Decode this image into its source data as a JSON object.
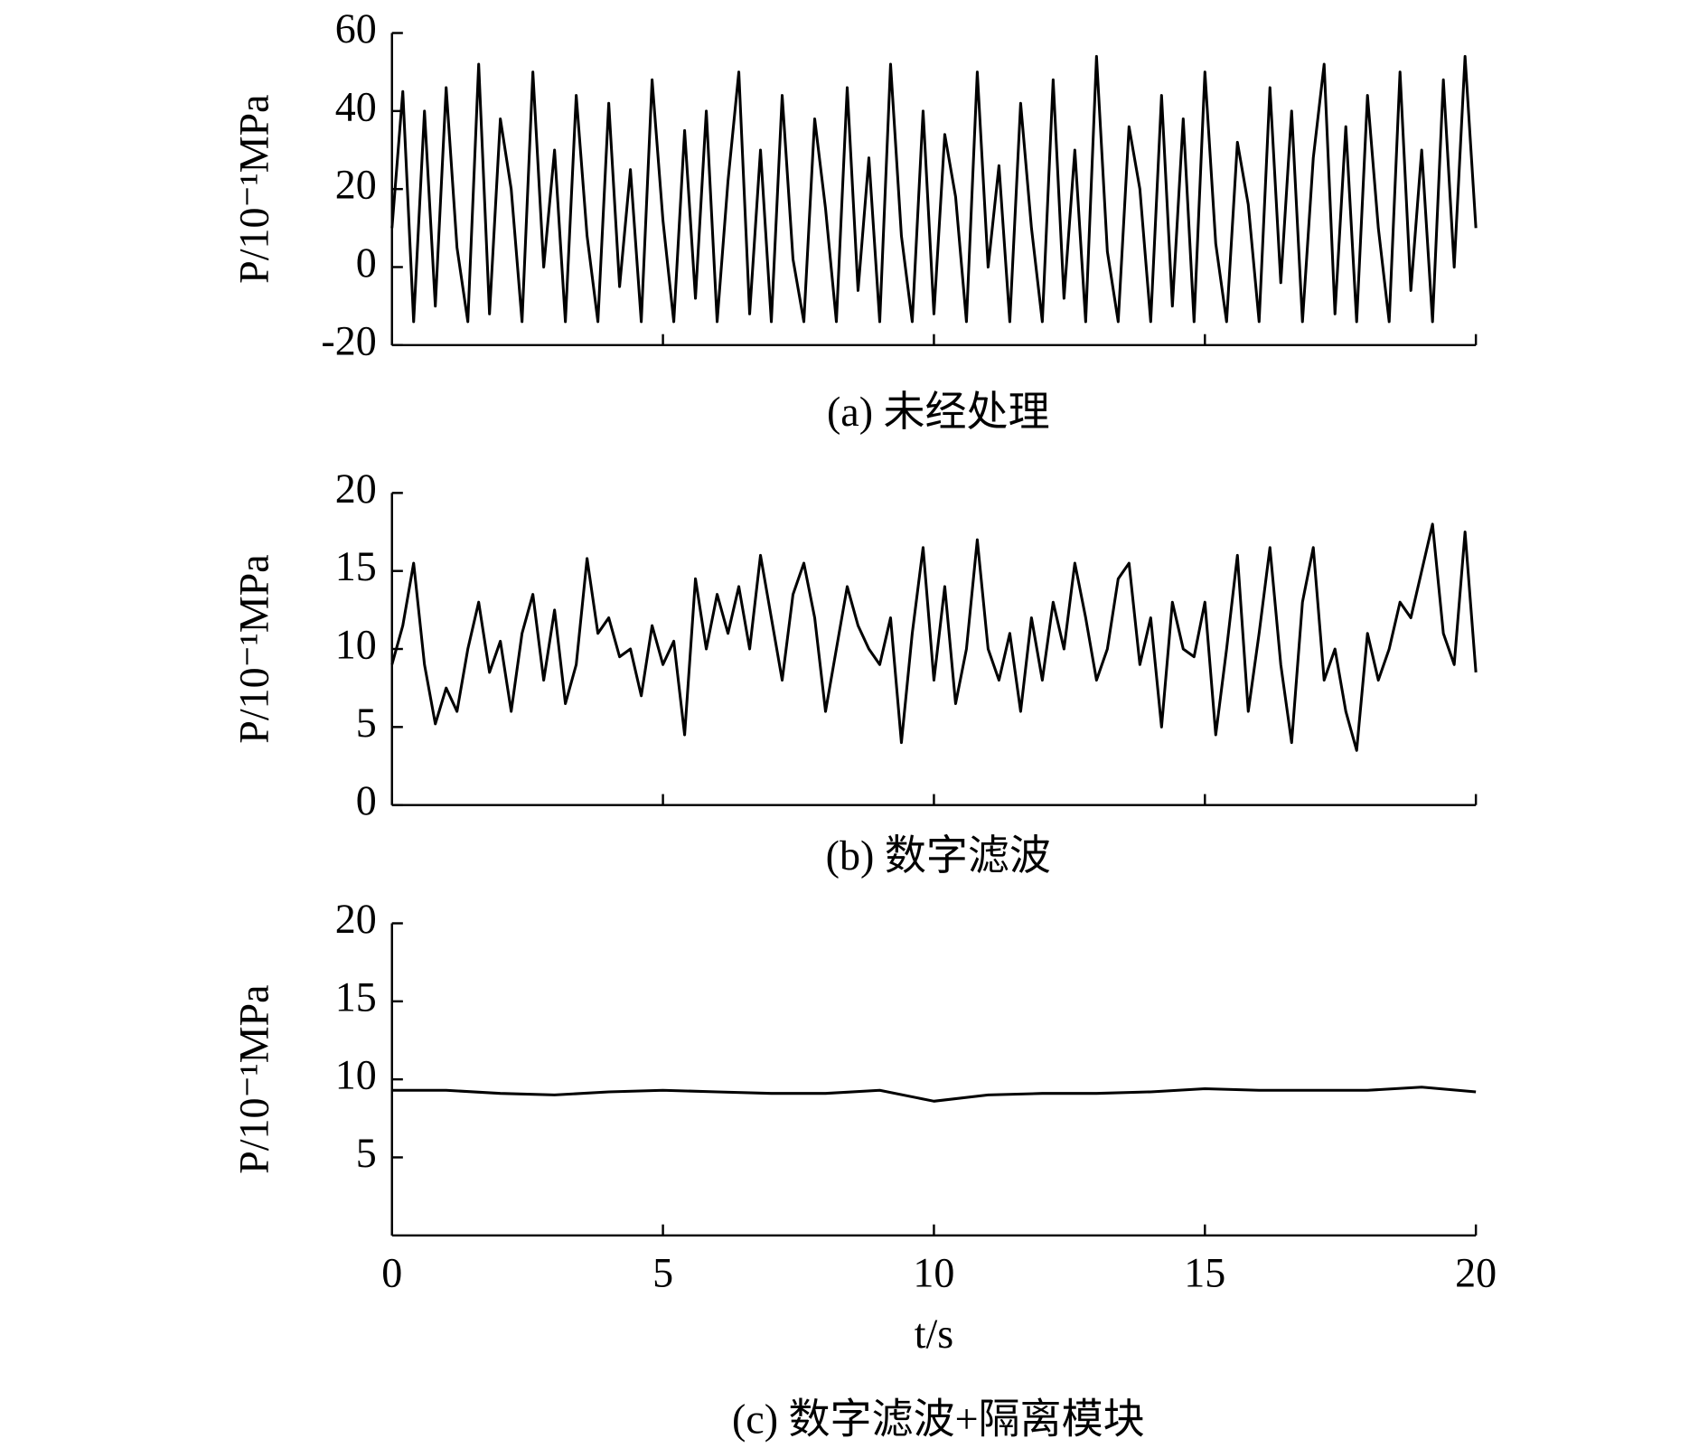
{
  "chart_data": [
    {
      "type": "line",
      "title": "(a) 未经处理",
      "ylabel": "P/10⁻¹MPa",
      "xlim": [
        0,
        20
      ],
      "ylim": [
        -20,
        60
      ],
      "yticks": [
        -20,
        0,
        20,
        40,
        60
      ],
      "xticks": [
        0,
        5,
        10,
        15,
        20
      ],
      "show_xtick_labels": false,
      "color": "#000000",
      "x": [
        0,
        0.2,
        0.4,
        0.6,
        0.8,
        1,
        1.2,
        1.4,
        1.6,
        1.8,
        2,
        2.2,
        2.4,
        2.6,
        2.8,
        3,
        3.2,
        3.4,
        3.6,
        3.8,
        4,
        4.2,
        4.4,
        4.6,
        4.8,
        5,
        5.2,
        5.4,
        5.6,
        5.8,
        6,
        6.2,
        6.4,
        6.6,
        6.8,
        7,
        7.2,
        7.4,
        7.6,
        7.8,
        8,
        8.2,
        8.4,
        8.6,
        8.8,
        9,
        9.2,
        9.4,
        9.6,
        9.8,
        10,
        10.2,
        10.4,
        10.6,
        10.8,
        11,
        11.2,
        11.4,
        11.6,
        11.8,
        12,
        12.2,
        12.4,
        12.6,
        12.8,
        13,
        13.2,
        13.4,
        13.6,
        13.8,
        14,
        14.2,
        14.4,
        14.6,
        14.8,
        15,
        15.2,
        15.4,
        15.6,
        15.8,
        16,
        16.2,
        16.4,
        16.6,
        16.8,
        17,
        17.2,
        17.4,
        17.6,
        17.8,
        18,
        18.2,
        18.4,
        18.6,
        18.8,
        19,
        19.2,
        19.4,
        19.6,
        19.8,
        20
      ],
      "values": [
        10,
        45,
        -14,
        40,
        -10,
        46,
        5,
        -14,
        52,
        -12,
        38,
        20,
        -14,
        50,
        0,
        30,
        -14,
        44,
        8,
        -14,
        42,
        -5,
        25,
        -14,
        48,
        12,
        -14,
        35,
        -8,
        40,
        -14,
        22,
        50,
        -12,
        30,
        -14,
        44,
        2,
        -14,
        38,
        15,
        -14,
        46,
        -6,
        28,
        -14,
        52,
        8,
        -14,
        40,
        -12,
        34,
        18,
        -14,
        50,
        0,
        26,
        -14,
        42,
        10,
        -14,
        48,
        -8,
        30,
        -14,
        54,
        4,
        -14,
        36,
        20,
        -14,
        44,
        -10,
        38,
        -14,
        50,
        6,
        -14,
        32,
        16,
        -14,
        46,
        -4,
        40,
        -14,
        28,
        52,
        -12,
        36,
        -14,
        44,
        10,
        -14,
        50,
        -6,
        30,
        -14,
        48,
        0,
        54,
        10
      ]
    },
    {
      "type": "line",
      "title": "(b) 数字滤波",
      "ylabel": "P/10⁻¹MPa",
      "xlim": [
        0,
        20
      ],
      "ylim": [
        0,
        20
      ],
      "yticks": [
        0,
        5,
        10,
        15,
        20
      ],
      "xticks": [
        0,
        5,
        10,
        15,
        20
      ],
      "show_xtick_labels": false,
      "color": "#000000",
      "x": [
        0,
        0.2,
        0.4,
        0.6,
        0.8,
        1,
        1.2,
        1.4,
        1.6,
        1.8,
        2,
        2.2,
        2.4,
        2.6,
        2.8,
        3,
        3.2,
        3.4,
        3.6,
        3.8,
        4,
        4.2,
        4.4,
        4.6,
        4.8,
        5,
        5.2,
        5.4,
        5.6,
        5.8,
        6,
        6.2,
        6.4,
        6.6,
        6.8,
        7,
        7.2,
        7.4,
        7.6,
        7.8,
        8,
        8.2,
        8.4,
        8.6,
        8.8,
        9,
        9.2,
        9.4,
        9.6,
        9.8,
        10,
        10.2,
        10.4,
        10.6,
        10.8,
        11,
        11.2,
        11.4,
        11.6,
        11.8,
        12,
        12.2,
        12.4,
        12.6,
        12.8,
        13,
        13.2,
        13.4,
        13.6,
        13.8,
        14,
        14.2,
        14.4,
        14.6,
        14.8,
        15,
        15.2,
        15.4,
        15.6,
        15.8,
        16,
        16.2,
        16.4,
        16.6,
        16.8,
        17,
        17.2,
        17.4,
        17.6,
        17.8,
        18,
        18.2,
        18.4,
        18.6,
        18.8,
        19,
        19.2,
        19.4,
        19.6,
        19.8,
        20
      ],
      "values": [
        9,
        11.5,
        15.5,
        9,
        5.2,
        7.5,
        6,
        10,
        13,
        8.5,
        10.5,
        6,
        11,
        13.5,
        8,
        12.5,
        6.5,
        9,
        15.8,
        11,
        12,
        9.5,
        10,
        7,
        11.5,
        9,
        10.5,
        4.5,
        14.5,
        10,
        13.5,
        11,
        14,
        10,
        16,
        12,
        8,
        13.5,
        15.5,
        12,
        6,
        10,
        14,
        11.5,
        10,
        9,
        12,
        4,
        11,
        16.5,
        8,
        14,
        6.5,
        10,
        17,
        10,
        8,
        11,
        6,
        12,
        8,
        13,
        10,
        15.5,
        12,
        8,
        10,
        14.5,
        15.5,
        9,
        12,
        5,
        13,
        10,
        9.5,
        13,
        4.5,
        10,
        16,
        6,
        11,
        16.5,
        9,
        4,
        13,
        16.5,
        8,
        10,
        6,
        3.5,
        11,
        8,
        10,
        13,
        12,
        15,
        18,
        11,
        9,
        17.5,
        8.5
      ]
    },
    {
      "type": "line",
      "title": "(c) 数字滤波+隔离模块",
      "ylabel": "P/10⁻¹MPa",
      "xlabel": "t/s",
      "xlim": [
        0,
        20
      ],
      "ylim": [
        0,
        20
      ],
      "yticks": [
        5,
        10,
        15,
        20
      ],
      "xticks": [
        0,
        5,
        10,
        15,
        20
      ],
      "show_xtick_labels": true,
      "color": "#000000",
      "x": [
        0,
        1,
        2,
        3,
        4,
        5,
        6,
        7,
        8,
        9,
        10,
        11,
        12,
        13,
        14,
        15,
        16,
        17,
        18,
        19,
        20
      ],
      "values": [
        9.3,
        9.3,
        9.1,
        9.0,
        9.2,
        9.3,
        9.2,
        9.1,
        9.1,
        9.3,
        8.6,
        9.0,
        9.1,
        9.1,
        9.2,
        9.4,
        9.3,
        9.3,
        9.3,
        9.5,
        9.2
      ]
    }
  ]
}
